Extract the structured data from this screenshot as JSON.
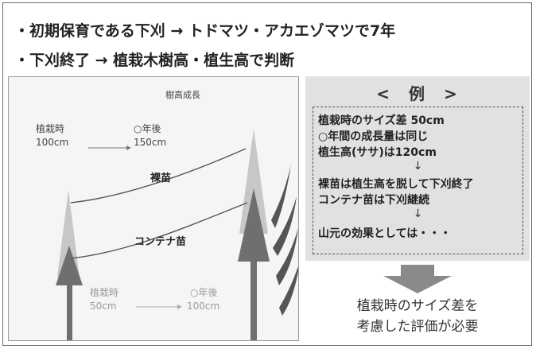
{
  "headings": {
    "line1": "・初期保育である下刈 → トドマツ・アカエゾマツで7年",
    "line2": "・下刈終了 → 植栽木樹高・植生高で判断"
  },
  "diagram": {
    "title": "樹高成長",
    "planting_label_top": "植栽時",
    "planting_height_top": "100cm",
    "years_label_top": "○年後",
    "years_height_top": "150cm",
    "bare_root_label": "裸苗",
    "container_label": "コンテナ苗",
    "planting_label_bottom": "植栽時",
    "planting_height_bottom": "50cm",
    "years_label_bottom": "○年後",
    "years_height_bottom": "100cm"
  },
  "example": {
    "title": "<　例　>",
    "lines": [
      "植栽時のサイズ差 50cm",
      "○年間の成長量は同じ",
      "植生高(ササ)は120cm",
      "裸苗は植生高を脱して下刈終了",
      "コンテナ苗は下刈継続",
      "山元の効果としては・・・"
    ],
    "arrow_glyph": "↓"
  },
  "conclusion": {
    "line1": "植栽時のサイズ差を",
    "line2": "考慮した評価が必要"
  },
  "colors": {
    "light_tree": "#c7c7c7",
    "dark_tree": "#6f6f6f",
    "grass": "#555555",
    "panel_bg": "#f5f5f5",
    "example_bg": "#e1e1e1"
  }
}
